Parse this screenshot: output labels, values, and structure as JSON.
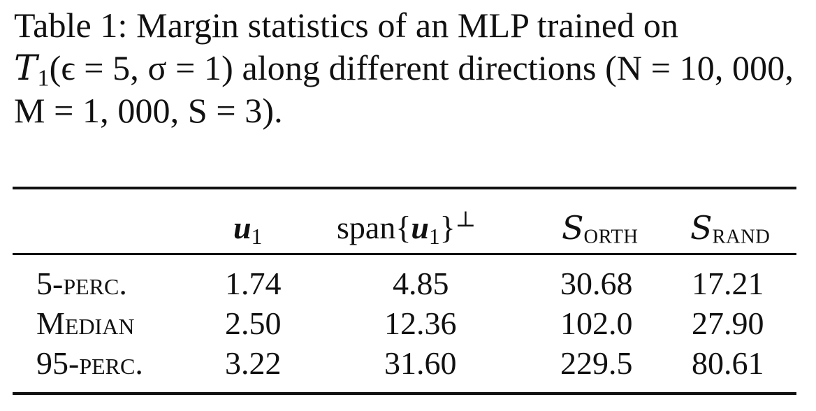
{
  "caption": {
    "label": "Table 1:",
    "text_a": "Margin statistics of an MLP trained on",
    "dataset_symbol": "T",
    "dataset_sub": "1",
    "params": "(ϵ = 5, σ = 1)",
    "text_b": "along different directions",
    "n_expr": "(N = 10, 000,",
    "m_expr": "M = 1, 000,",
    "s_expr": "S = 3)."
  },
  "table": {
    "columns": [
      {
        "main": "u",
        "sub": "1",
        "prefix": "",
        "suffix": ""
      },
      {
        "prefix": "span{",
        "main": "u",
        "sub": "1",
        "suffix": "}",
        "sup": "⊥"
      },
      {
        "main": "S",
        "sub": "ORTH"
      },
      {
        "main": "S",
        "sub": "RAND"
      }
    ],
    "rows": [
      {
        "label": "5-perc.",
        "values": [
          "1.74",
          "4.85",
          "30.68",
          "17.21"
        ]
      },
      {
        "label": "Median",
        "values": [
          "2.50",
          "12.36",
          "102.0",
          "27.90"
        ]
      },
      {
        "label": "95-perc.",
        "values": [
          "3.22",
          "31.60",
          "229.5",
          "80.61"
        ]
      }
    ]
  }
}
